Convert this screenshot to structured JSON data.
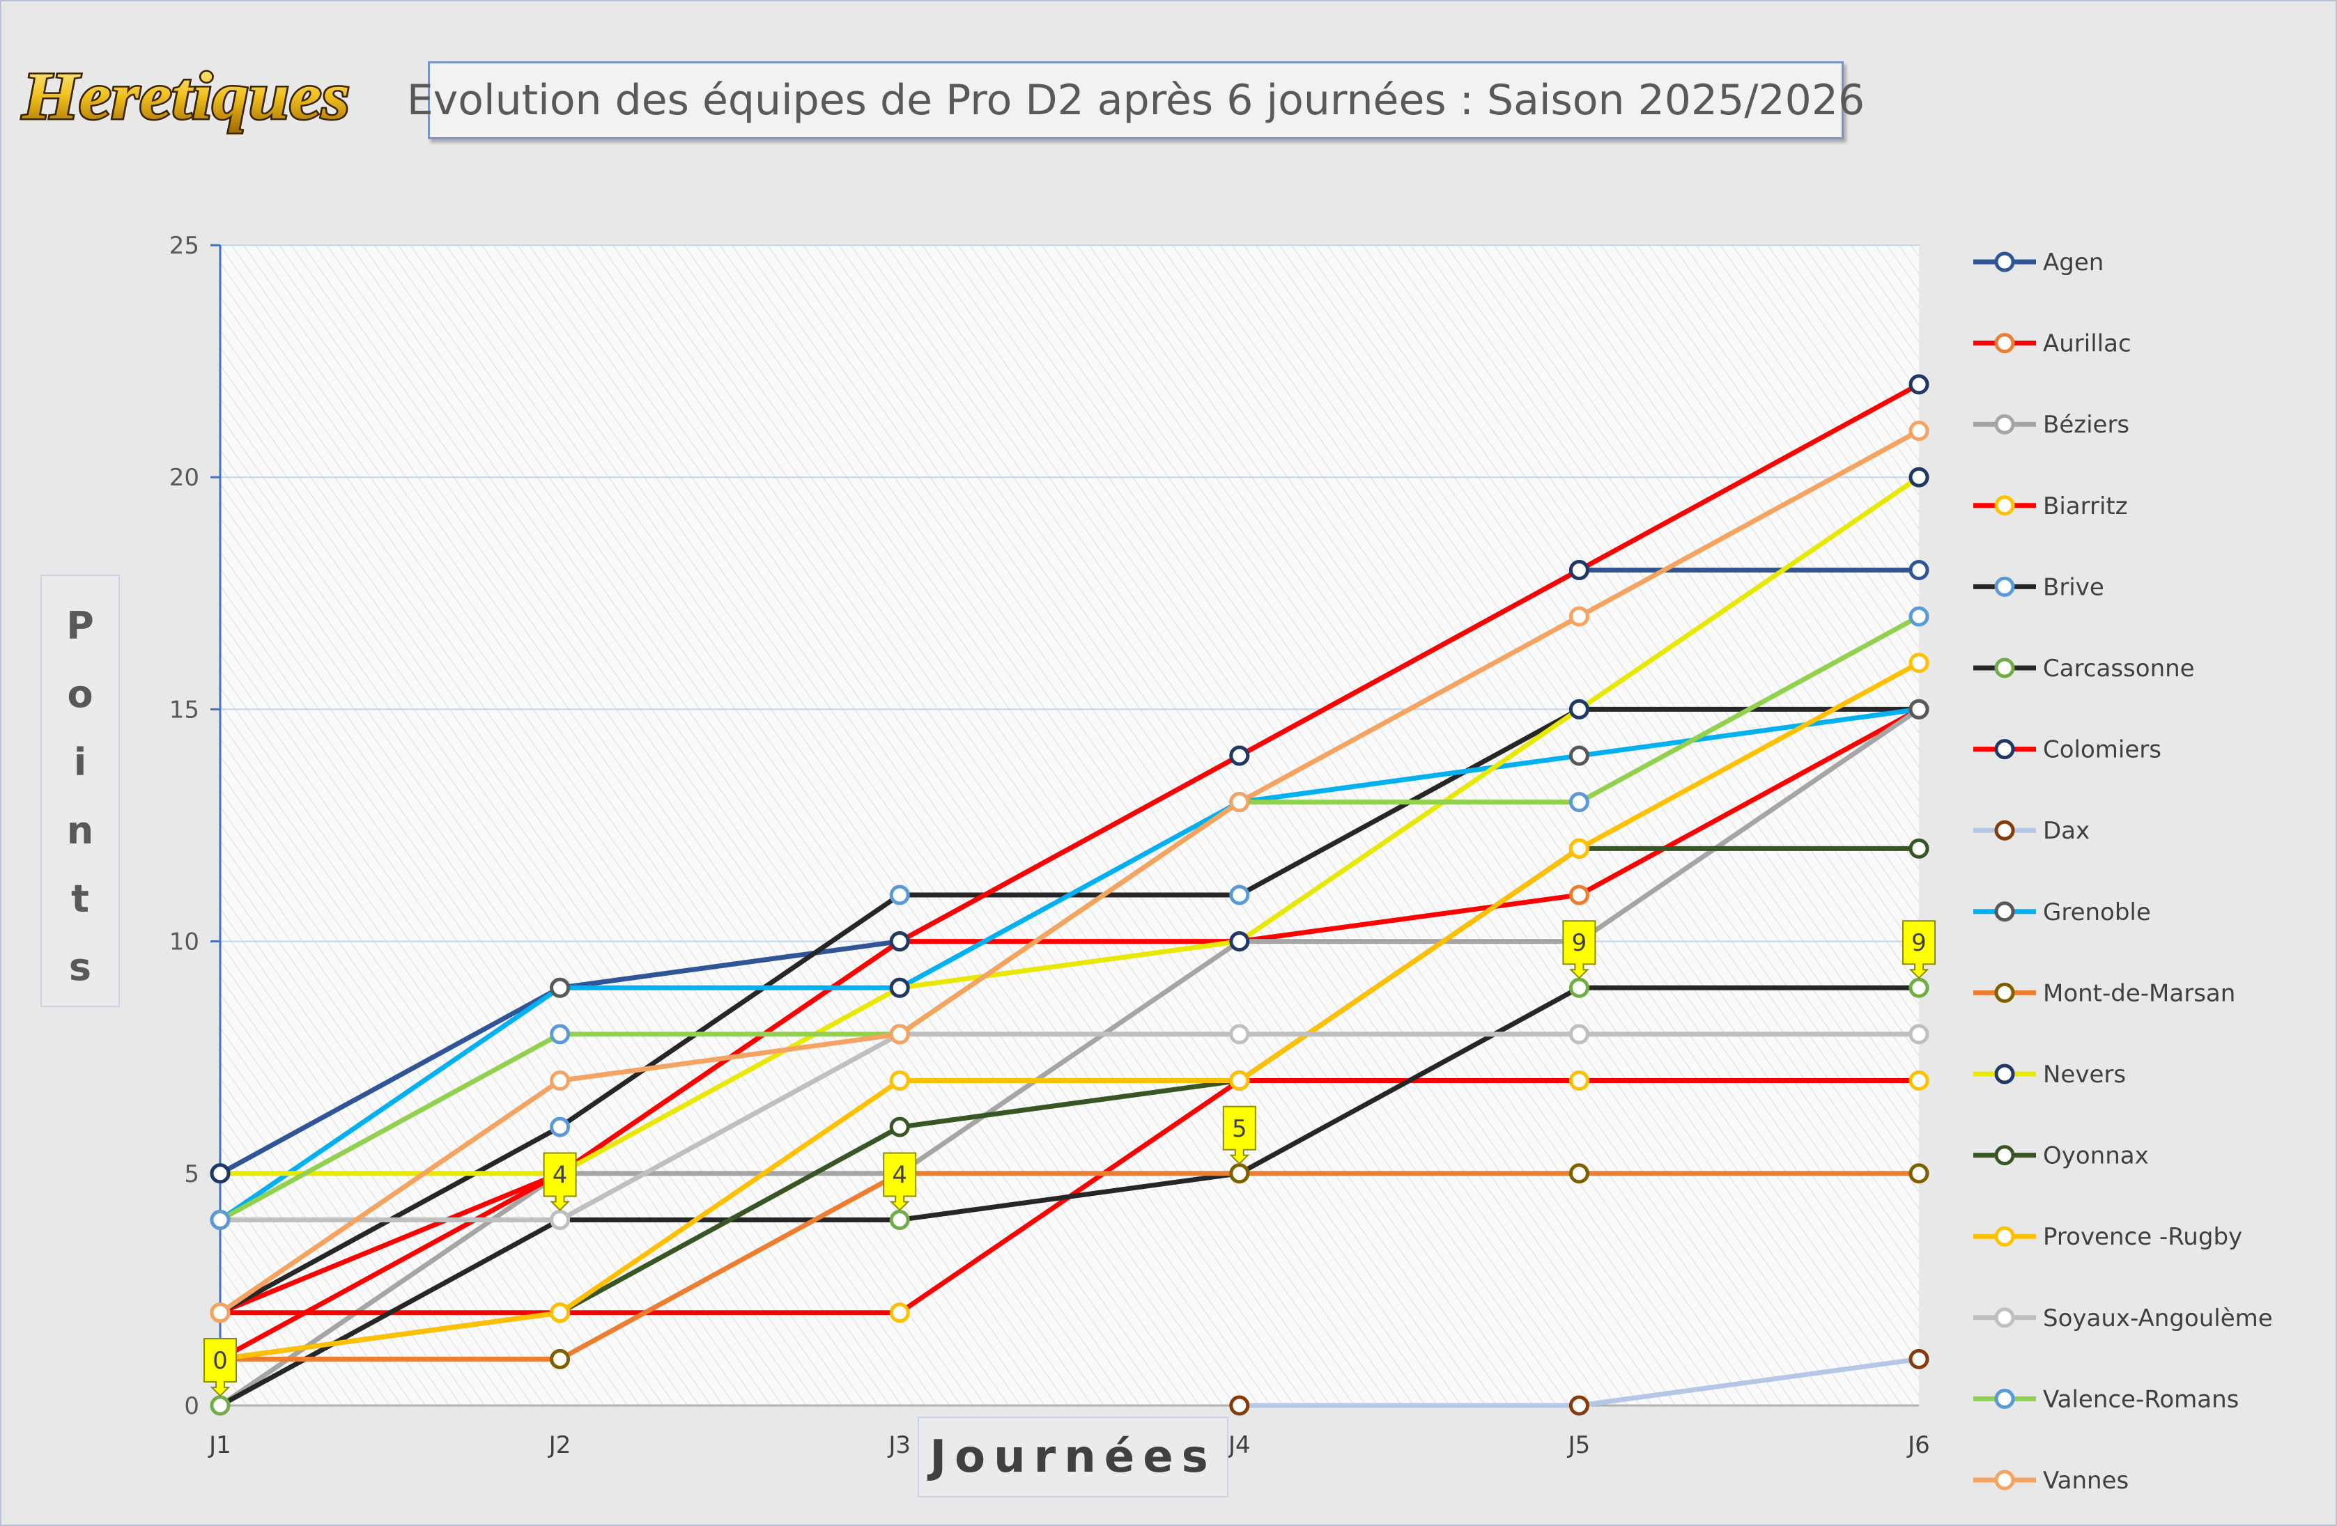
{
  "header": {
    "logo_text": "Heretiques",
    "title": "Evolution des équipes de Pro D2 après 6 journées : Saison 2025/2026"
  },
  "chart_data": {
    "type": "line",
    "title": "Evolution des équipes de Pro D2 après 6 journées : Saison 2025/2026",
    "xlabel": "Journées",
    "ylabel": "Points",
    "ylim": [
      0,
      25
    ],
    "yticks": [
      0,
      5,
      10,
      15,
      20,
      25
    ],
    "categories": [
      "J1",
      "J2",
      "J3",
      "J4",
      "J5",
      "J6"
    ],
    "grid": true,
    "legend": "right",
    "series": [
      {
        "name": "Agen",
        "color": "#2f5597",
        "marker": "#2f5597",
        "values": [
          5,
          9,
          10,
          14,
          18,
          18
        ]
      },
      {
        "name": "Aurillac",
        "color": "#ff0000",
        "marker": "#ed7d31",
        "values": [
          2,
          5,
          10,
          10,
          11,
          15
        ]
      },
      {
        "name": "Béziers",
        "color": "#a5a5a5",
        "marker": "#a5a5a5",
        "values": [
          0,
          5,
          5,
          10,
          10,
          15
        ]
      },
      {
        "name": "Biarritz",
        "color": "#ff0000",
        "marker": "#ffc000",
        "values": [
          2,
          2,
          2,
          7,
          7,
          7
        ]
      },
      {
        "name": "Brive",
        "color": "#262626",
        "marker": "#5b9bd5",
        "values": [
          2,
          6,
          11,
          11,
          15,
          15
        ]
      },
      {
        "name": "Carcassonne",
        "color": "#262626",
        "marker": "#70ad47",
        "values": [
          0,
          4,
          4,
          5,
          9,
          9
        ]
      },
      {
        "name": "Colomiers",
        "color": "#ff0000",
        "marker": "#1f3864",
        "values": [
          1,
          5,
          10,
          14,
          18,
          22
        ]
      },
      {
        "name": "Dax",
        "color": "#b4c7e7",
        "marker": "#843c0c",
        "values": [
          null,
          null,
          null,
          0,
          0,
          1
        ]
      },
      {
        "name": "Grenoble",
        "color": "#00b0f0",
        "marker": "#595959",
        "values": [
          4,
          9,
          9,
          13,
          14,
          15
        ]
      },
      {
        "name": "Mont-de-Marsan",
        "color": "#ed7d31",
        "marker": "#7f6000",
        "values": [
          1,
          1,
          5,
          5,
          5,
          5
        ]
      },
      {
        "name": "Nevers",
        "color": "#e8e800",
        "marker": "#1f3864",
        "values": [
          5,
          5,
          9,
          10,
          15,
          20
        ]
      },
      {
        "name": "Oyonnax",
        "color": "#375623",
        "marker": "#375623",
        "values": [
          1,
          2,
          6,
          7,
          12,
          12
        ]
      },
      {
        "name": "Provence -Rugby",
        "color": "#ffc000",
        "marker": "#ffc000",
        "values": [
          1,
          2,
          7,
          7,
          12,
          16
        ]
      },
      {
        "name": "Soyaux-Angoulème",
        "color": "#bfbfbf",
        "marker": "#bfbfbf",
        "values": [
          4,
          4,
          8,
          8,
          8,
          8
        ]
      },
      {
        "name": "Valence-Romans",
        "color": "#92d050",
        "marker": "#5b9bd5",
        "values": [
          4,
          8,
          8,
          13,
          13,
          17
        ]
      },
      {
        "name": "Vannes",
        "color": "#f4a460",
        "marker": "#f4a460",
        "values": [
          2,
          7,
          8,
          13,
          17,
          21
        ]
      }
    ],
    "annotations": [
      {
        "category": "J1",
        "value": 0,
        "label": "0"
      },
      {
        "category": "J2",
        "value": 4,
        "label": "4"
      },
      {
        "category": "J3",
        "value": 4,
        "label": "4"
      },
      {
        "category": "J4",
        "value": 5,
        "label": "5"
      },
      {
        "category": "J5",
        "value": 9,
        "label": "9"
      },
      {
        "category": "J6",
        "value": 9,
        "label": "9"
      }
    ]
  }
}
